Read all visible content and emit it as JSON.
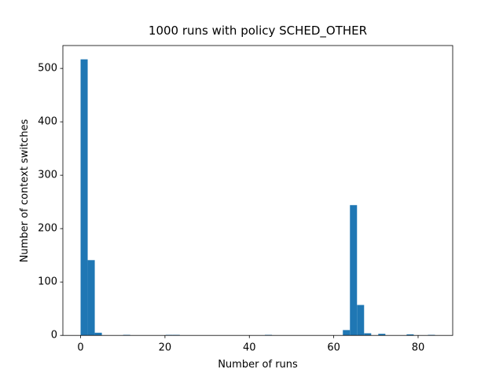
{
  "chart_data": {
    "type": "histogram",
    "title": "1000 runs with policy SCHED_OTHER",
    "x_label": "Number of runs",
    "y_label": "Number of context switches",
    "bins": [
      0,
      1.68,
      3.36,
      5.04,
      6.72,
      8.4,
      10.08,
      11.76,
      13.44,
      15.12,
      16.8,
      18.48,
      20.16,
      21.84,
      23.52,
      25.2,
      26.88,
      28.56,
      30.24,
      31.92,
      33.6,
      35.28,
      36.96,
      38.64,
      40.32,
      42,
      43.68,
      45.36,
      47.04,
      48.72,
      50.4,
      52.08,
      53.76,
      55.44,
      57.12,
      58.8,
      60.48,
      62.16,
      63.84,
      65.52,
      67.2,
      68.88,
      70.56,
      72.24,
      73.92,
      75.6,
      77.28,
      78.96,
      80.64,
      82.32,
      84
    ],
    "values": [
      517,
      141,
      5,
      0,
      0,
      0,
      1,
      0,
      0,
      0,
      0,
      0,
      1,
      1,
      0,
      0,
      0,
      0,
      0,
      0,
      0,
      0,
      0,
      0,
      0,
      0,
      1,
      0,
      0,
      0,
      0,
      0,
      0,
      0,
      0,
      0,
      0,
      10,
      244,
      57,
      4,
      0,
      3,
      0,
      0,
      0,
      2,
      0,
      0,
      1
    ],
    "color": "#1f77b4",
    "xlim": [
      -4.2,
      88.2
    ],
    "xticks": [
      0,
      20,
      40,
      60,
      80
    ],
    "ylim": [
      0,
      542.85
    ],
    "yticks": [
      0,
      100,
      200,
      300,
      400,
      500
    ]
  }
}
